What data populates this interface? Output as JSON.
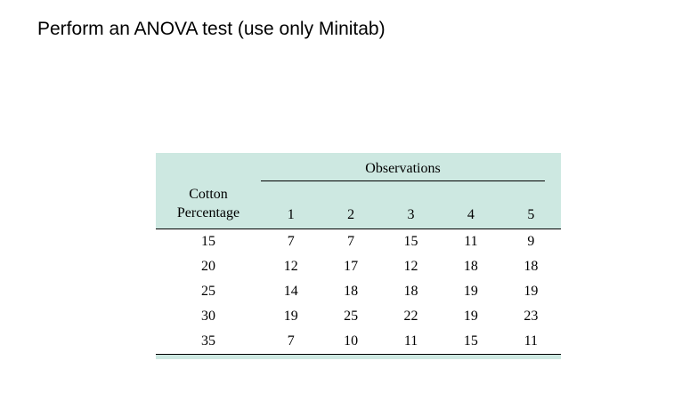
{
  "page": {
    "title": "Perform an ANOVA test (use only Minitab)"
  },
  "table": {
    "accent_color": "#cde8e1",
    "observations_header": "Observations",
    "row_header_line1": "Cotton",
    "row_header_line2": "Percentage",
    "columns": [
      "1",
      "2",
      "3",
      "4",
      "5"
    ],
    "rows": [
      {
        "label": "15",
        "values": [
          "7",
          "7",
          "15",
          "11",
          "9"
        ]
      },
      {
        "label": "20",
        "values": [
          "12",
          "17",
          "12",
          "18",
          "18"
        ]
      },
      {
        "label": "25",
        "values": [
          "14",
          "18",
          "18",
          "19",
          "19"
        ]
      },
      {
        "label": "30",
        "values": [
          "19",
          "25",
          "22",
          "19",
          "23"
        ]
      },
      {
        "label": "35",
        "values": [
          "7",
          "10",
          "11",
          "15",
          "11"
        ]
      }
    ]
  }
}
